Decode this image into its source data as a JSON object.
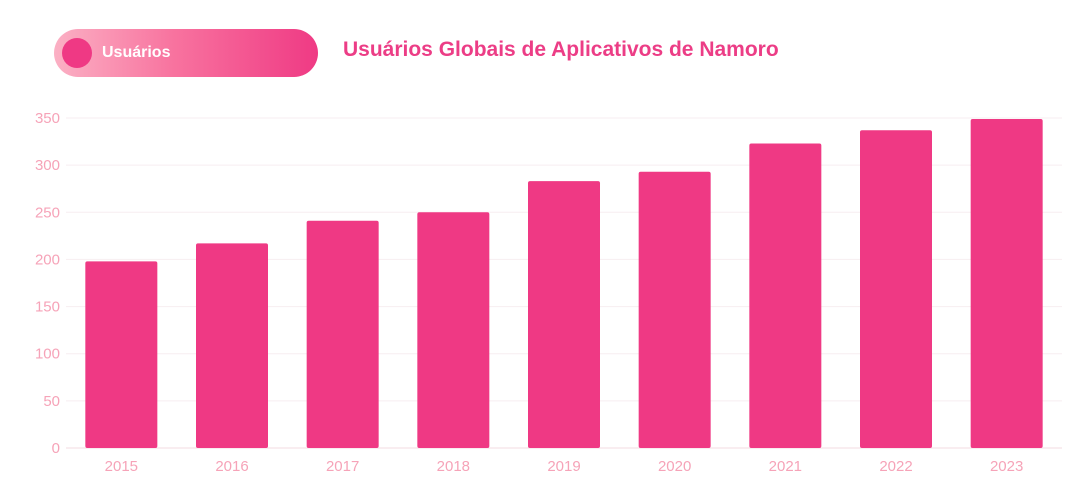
{
  "legend": {
    "label": "Usuários",
    "color": "#ef3984"
  },
  "chart_data": {
    "type": "bar",
    "title": "Usuários Globais de Aplicativos de Namoro",
    "xlabel": "",
    "ylabel": "",
    "categories": [
      "2015",
      "2016",
      "2017",
      "2018",
      "2019",
      "2020",
      "2021",
      "2022",
      "2023"
    ],
    "series": [
      {
        "name": "Usuários",
        "values": [
          198,
          217,
          241,
          250,
          283,
          293,
          323,
          337,
          349
        ]
      }
    ],
    "ylim": [
      0,
      350
    ],
    "yticks": [
      0,
      50,
      100,
      150,
      200,
      250,
      300,
      350
    ],
    "grid": true,
    "legend_position": "top-left",
    "bar_color": "#ef3984",
    "tick_color": "#f6a3b8"
  }
}
